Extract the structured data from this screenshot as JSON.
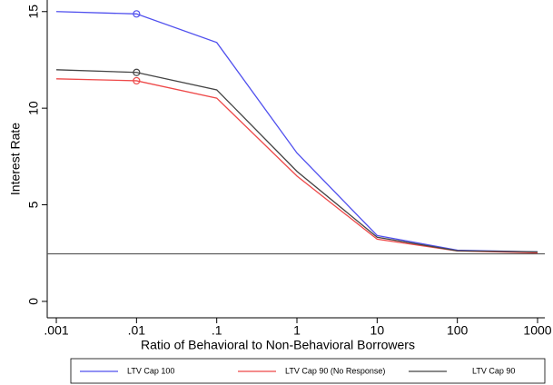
{
  "chart_data": {
    "type": "line",
    "x": [
      0.001,
      0.01,
      0.1,
      1,
      10,
      100,
      1000
    ],
    "xlog": true,
    "xlim": [
      0.00077,
      1232
    ],
    "xticks": [
      {
        "value": 0.001,
        "label": ".001"
      },
      {
        "value": 0.01,
        "label": ".01"
      },
      {
        "value": 0.1,
        "label": ".1"
      },
      1,
      10,
      100,
      1000
    ],
    "ylim": [
      -0.85,
      15.6
    ],
    "yticks": [
      0,
      5,
      10,
      15
    ],
    "xlabel": "Ratio of Behavioral to Non-Behavioral Borrowers",
    "ylabel": "Interest Rate",
    "hline": 2.46,
    "hline_color": "#555555",
    "marker_x": 0.01,
    "series": [
      {
        "name": "LTV Cap 100",
        "color": "#5050ee",
        "values": [
          15.0,
          14.88,
          13.4,
          7.68,
          3.41,
          2.65,
          2.56
        ]
      },
      {
        "name": "LTV Cap 90 (No Response)",
        "color": "#ee4848",
        "values": [
          11.52,
          11.42,
          10.52,
          6.49,
          3.22,
          2.61,
          2.51
        ]
      },
      {
        "name": "LTV Cap 90",
        "color": "#444444",
        "values": [
          11.99,
          11.85,
          10.95,
          6.73,
          3.32,
          2.62,
          2.56
        ]
      }
    ]
  }
}
